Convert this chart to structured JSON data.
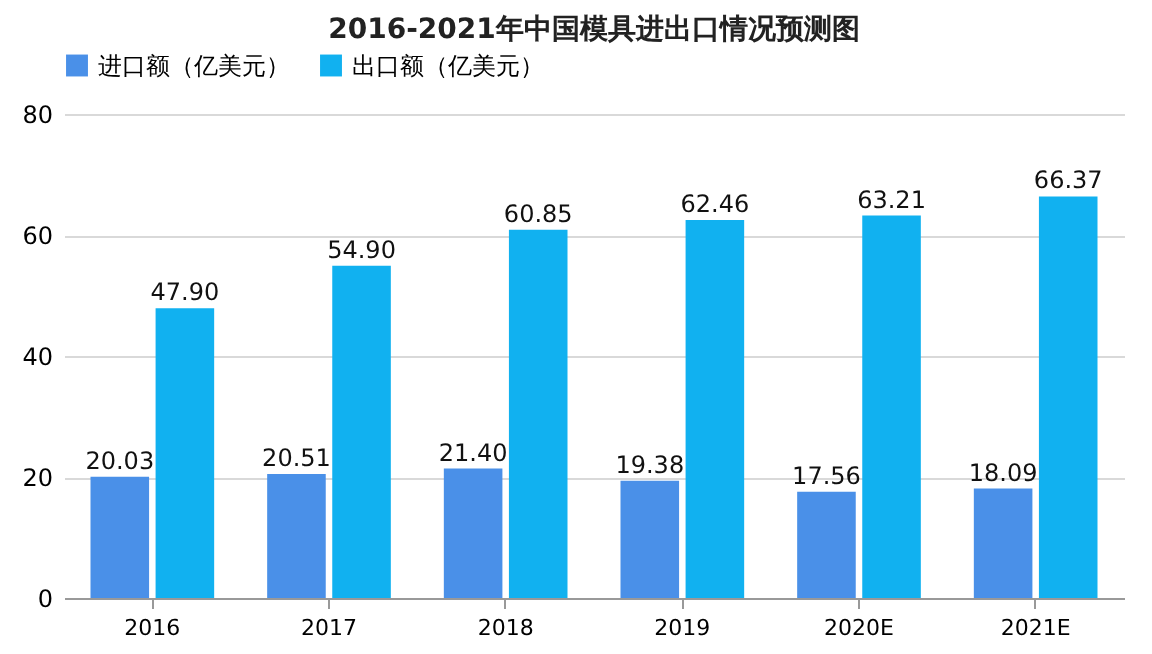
{
  "chart_data": {
    "type": "bar",
    "title": "2016-2021年中国模具进出口情况预测图",
    "categories": [
      "2016",
      "2017",
      "2018",
      "2019",
      "2020E",
      "2021E"
    ],
    "series": [
      {
        "name": "进口额（亿美元）",
        "color": "#4a90e8",
        "values": [
          20.03,
          20.51,
          21.4,
          19.38,
          17.56,
          18.09
        ],
        "value_labels": [
          "20.03",
          "20.51",
          "21.40",
          "19.38",
          "17.56",
          "18.09"
        ]
      },
      {
        "name": "出口额（亿美元）",
        "color": "#11b1f0",
        "values": [
          47.9,
          54.9,
          60.85,
          62.46,
          63.21,
          66.37
        ],
        "value_labels": [
          "47.90",
          "54.90",
          "60.85",
          "62.46",
          "63.21",
          "66.37"
        ]
      }
    ],
    "ylim": [
      0,
      80
    ],
    "yticks": [
      0,
      20,
      40,
      60,
      80
    ],
    "grid": "y",
    "legend": "top"
  }
}
